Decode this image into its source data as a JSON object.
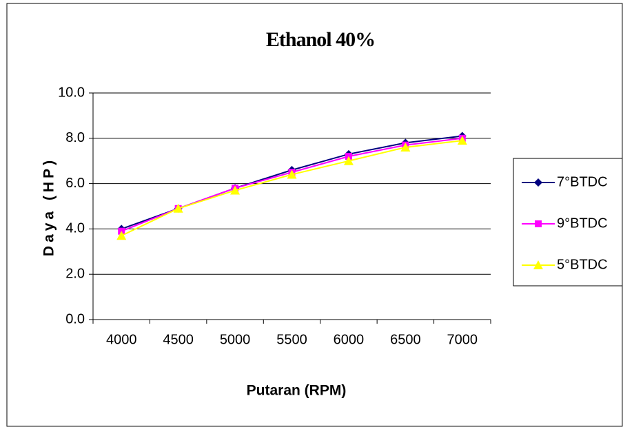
{
  "chart_data": {
    "type": "line",
    "title": "Ethanol 40%",
    "x_label": "Putaran (RPM)",
    "y_label": "Daya (HP)",
    "categories": [
      "4000",
      "4500",
      "5000",
      "5500",
      "6000",
      "6500",
      "7000"
    ],
    "series": [
      {
        "name": "7°BTDC",
        "color": "#000080",
        "marker": "diamond",
        "values": [
          4.0,
          4.9,
          5.8,
          6.6,
          7.3,
          7.8,
          8.1
        ]
      },
      {
        "name": "9°BTDC",
        "color": "#ff00ff",
        "marker": "square",
        "values": [
          3.9,
          4.9,
          5.8,
          6.5,
          7.2,
          7.7,
          8.0
        ]
      },
      {
        "name": "5°BTDC",
        "color": "#ffff00",
        "marker": "triangle",
        "values": [
          3.7,
          4.9,
          5.7,
          6.4,
          7.0,
          7.6,
          7.9
        ]
      }
    ],
    "ylim": [
      0,
      10
    ],
    "yticks": [
      {
        "value": 0,
        "label": "0.0"
      },
      {
        "value": 2,
        "label": "2.0"
      },
      {
        "value": 4,
        "label": "4.0"
      },
      {
        "value": 6,
        "label": "6.0"
      },
      {
        "value": 8,
        "label": "8.0"
      },
      {
        "value": 10,
        "label": "10.0"
      }
    ],
    "grid": true,
    "legend": "right"
  }
}
